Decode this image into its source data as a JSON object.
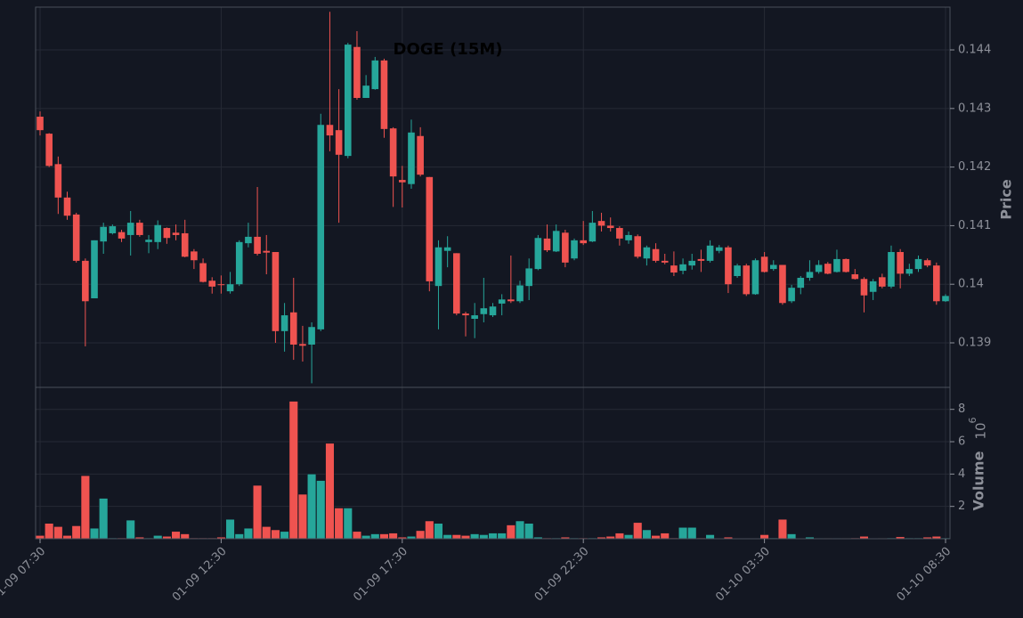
{
  "chart_data": {
    "type": "candlestick",
    "title": "DOGE (15M)",
    "ylabel": "Price",
    "volume_label": "Volume",
    "volume_scale": "10",
    "volume_scale_exponent": "6",
    "up_color": "#26a69a",
    "down_color": "#ef5350",
    "grid": true,
    "categories": [
      "01-09 07:30",
      null,
      null,
      null,
      null,
      null,
      null,
      null,
      null,
      null,
      null,
      null,
      null,
      null,
      null,
      null,
      null,
      null,
      null,
      null,
      "01-09 12:30",
      null,
      null,
      null,
      null,
      null,
      null,
      null,
      null,
      null,
      null,
      null,
      null,
      null,
      null,
      null,
      null,
      null,
      null,
      null,
      "01-09 17:30",
      null,
      null,
      null,
      null,
      null,
      null,
      null,
      null,
      null,
      null,
      null,
      null,
      null,
      null,
      null,
      null,
      null,
      null,
      null,
      "01-09 22:30",
      null,
      null,
      null,
      null,
      null,
      null,
      null,
      null,
      null,
      null,
      null,
      null,
      null,
      null,
      null,
      null,
      null,
      null,
      null,
      "01-10 03:30",
      null,
      null,
      null,
      null,
      null,
      null,
      null,
      null,
      null,
      null,
      null,
      null,
      null,
      null,
      null,
      null,
      null,
      null,
      null,
      "01-10 08:30"
    ],
    "open": [
      0.14286,
      0.14257,
      0.14205,
      0.14148,
      0.14119,
      0.1404,
      0.13976,
      0.14073,
      0.14087,
      0.14089,
      0.14084,
      0.14105,
      0.14072,
      0.14072,
      0.14096,
      0.14088,
      0.14087,
      0.14056,
      0.14036,
      0.14006,
      0.14,
      0.13988,
      0.14,
      0.1407,
      0.14081,
      0.14057,
      0.14055,
      0.1392,
      0.13952,
      0.13898,
      0.13897,
      0.13923,
      0.14272,
      0.14263,
      0.14219,
      0.14405,
      0.14318,
      0.14333,
      0.14382,
      0.14266,
      0.14178,
      0.14171,
      0.14253,
      0.14183,
      0.13997,
      0.14057,
      0.14053,
      0.1395,
      0.13941,
      0.13949,
      0.13947,
      0.13967,
      0.13974,
      0.13971,
      0.13997,
      0.14026,
      0.14078,
      0.14056,
      0.14088,
      0.14044,
      0.14075,
      0.14073,
      0.14108,
      0.141,
      0.14096,
      0.14075,
      0.14082,
      0.14044,
      0.1406,
      0.1404,
      0.14032,
      0.14023,
      0.14032,
      0.14043,
      0.1404,
      0.14057,
      0.14063,
      0.14014,
      0.14032,
      0.13983,
      0.14047,
      0.14026,
      0.14033,
      0.13971,
      0.13994,
      0.14011,
      0.14021,
      0.14035,
      0.14021,
      0.14043,
      0.14017,
      0.14009,
      0.13987,
      0.14012,
      0.13996,
      0.14055,
      0.14018,
      0.14026,
      0.14041,
      0.14032,
      0.13971
    ],
    "high": [
      0.14295,
      0.14258,
      0.14218,
      0.14158,
      0.14122,
      0.14044,
      0.14075,
      0.14105,
      0.14102,
      0.14093,
      0.14125,
      0.1411,
      0.14084,
      0.14109,
      0.14097,
      0.14102,
      0.1411,
      0.1406,
      0.14044,
      0.14012,
      0.14015,
      0.14021,
      0.14075,
      0.14105,
      0.14166,
      0.14084,
      0.14055,
      0.13968,
      0.14011,
      0.13929,
      0.13935,
      0.14291,
      0.14465,
      0.14333,
      0.14412,
      0.14432,
      0.14357,
      0.14388,
      0.14385,
      0.14268,
      0.14202,
      0.14281,
      0.14268,
      0.14183,
      0.14075,
      0.14082,
      0.14053,
      0.13953,
      0.13968,
      0.14011,
      0.13968,
      0.13983,
      0.14049,
      0.14006,
      0.14044,
      0.14084,
      0.14102,
      0.14102,
      0.14093,
      0.14078,
      0.14108,
      0.14125,
      0.14122,
      0.14114,
      0.14099,
      0.1409,
      0.14085,
      0.14066,
      0.1407,
      0.14052,
      0.14056,
      0.14044,
      0.14052,
      0.14059,
      0.14075,
      0.14067,
      0.14066,
      0.14035,
      0.14035,
      0.14044,
      0.14055,
      0.14041,
      0.14033,
      0.13999,
      0.14014,
      0.14041,
      0.14041,
      0.14038,
      0.14059,
      0.14044,
      0.14026,
      0.14012,
      0.14009,
      0.14018,
      0.14066,
      0.1406,
      0.14035,
      0.14049,
      0.14044,
      0.14037,
      0.13983
    ],
    "low": [
      0.14254,
      0.142,
      0.1412,
      0.1411,
      0.14037,
      0.13894,
      0.13976,
      0.14052,
      0.14085,
      0.14072,
      0.14049,
      0.14081,
      0.14053,
      0.1406,
      0.14069,
      0.14075,
      0.14046,
      0.14026,
      0.14003,
      0.13984,
      0.13984,
      0.13984,
      0.13997,
      0.14063,
      0.14049,
      0.14017,
      0.139,
      0.13885,
      0.13871,
      0.13868,
      0.13831,
      0.1392,
      0.14227,
      0.14105,
      0.14215,
      0.14315,
      0.14318,
      0.14332,
      0.1425,
      0.14132,
      0.14131,
      0.14163,
      0.14184,
      0.13988,
      0.13923,
      0.14029,
      0.13947,
      0.13911,
      0.13908,
      0.13935,
      0.13944,
      0.13947,
      0.13968,
      0.13968,
      0.13973,
      0.14024,
      0.14055,
      0.14055,
      0.14029,
      0.14041,
      0.14067,
      0.14072,
      0.1409,
      0.1409,
      0.14066,
      0.14069,
      0.14044,
      0.14032,
      0.14037,
      0.14034,
      0.14014,
      0.14017,
      0.14025,
      0.14021,
      0.14037,
      0.14053,
      0.13985,
      0.14011,
      0.1398,
      0.13982,
      0.1402,
      0.14023,
      0.13965,
      0.13968,
      0.13983,
      0.14006,
      0.14018,
      0.14017,
      0.1402,
      0.1402,
      0.14008,
      0.13952,
      0.13973,
      0.13993,
      0.13993,
      0.13993,
      0.14014,
      0.14021,
      0.14029,
      0.13965,
      0.1397
    ],
    "close": [
      0.14263,
      0.14202,
      0.14148,
      0.14117,
      0.1404,
      0.13971,
      0.14075,
      0.14098,
      0.14099,
      0.14078,
      0.14105,
      0.14084,
      0.14076,
      0.14101,
      0.14079,
      0.14084,
      0.14047,
      0.14041,
      0.14004,
      0.13996,
      0.13999,
      0.14,
      0.14072,
      0.14081,
      0.14052,
      0.14054,
      0.1392,
      0.13947,
      0.13897,
      0.13895,
      0.13927,
      0.14272,
      0.14254,
      0.14221,
      0.14409,
      0.14318,
      0.14339,
      0.14382,
      0.14265,
      0.14184,
      0.14174,
      0.14259,
      0.14187,
      0.14005,
      0.14063,
      0.14063,
      0.1395,
      0.13947,
      0.13947,
      0.13959,
      0.13962,
      0.13974,
      0.13971,
      0.13998,
      0.14027,
      0.14079,
      0.14058,
      0.14091,
      0.14037,
      0.14075,
      0.1407,
      0.14105,
      0.141,
      0.14096,
      0.14078,
      0.14084,
      0.14047,
      0.14063,
      0.1404,
      0.14037,
      0.1402,
      0.14034,
      0.1404,
      0.1404,
      0.14066,
      0.14063,
      0.14,
      0.14032,
      0.13983,
      0.14041,
      0.14021,
      0.14033,
      0.13968,
      0.13994,
      0.14011,
      0.14021,
      0.14033,
      0.14018,
      0.14043,
      0.14021,
      0.14009,
      0.13981,
      0.14005,
      0.13996,
      0.14055,
      0.14018,
      0.14026,
      0.14043,
      0.14032,
      0.13971,
      0.1398
    ],
    "volume": [
      0.2,
      0.95,
      0.75,
      0.2,
      0.8,
      3.9,
      0.65,
      2.5,
      0.05,
      0.05,
      1.15,
      0.1,
      0.05,
      0.2,
      0.15,
      0.45,
      0.3,
      0.05,
      0.05,
      0.05,
      0.1,
      1.2,
      0.3,
      0.65,
      3.3,
      0.75,
      0.55,
      0.45,
      8.5,
      2.75,
      4.0,
      3.6,
      5.9,
      1.9,
      1.9,
      0.45,
      0.2,
      0.3,
      0.3,
      0.35,
      0.1,
      0.15,
      0.5,
      1.1,
      0.95,
      0.25,
      0.25,
      0.2,
      0.3,
      0.25,
      0.35,
      0.35,
      0.85,
      1.1,
      0.95,
      0.1,
      0.05,
      0.05,
      0.1,
      0.05,
      0.05,
      0.05,
      0.1,
      0.15,
      0.35,
      0.25,
      1.0,
      0.55,
      0.2,
      0.35,
      0.05,
      0.7,
      0.7,
      0.05,
      0.25,
      0.02,
      0.1,
      0.02,
      0.02,
      0.02,
      0.25,
      0.05,
      1.2,
      0.3,
      0.02,
      0.1,
      0.03,
      0.03,
      0.03,
      0.03,
      0.05,
      0.15,
      0.02,
      0.03,
      0.05,
      0.12,
      0.05,
      0.05,
      0.1,
      0.15,
      0.05
    ],
    "ylim": [
      0.13824,
      0.14473
    ],
    "yticks": [
      0.139,
      0.14,
      0.141,
      0.142,
      0.143,
      0.144
    ],
    "volume_ylim": [
      0,
      9.36
    ],
    "volume_yticks": [
      2,
      4,
      6,
      8
    ]
  }
}
